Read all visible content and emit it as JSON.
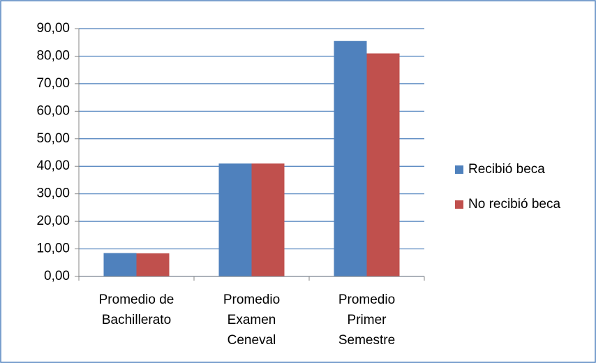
{
  "chart_data": {
    "type": "bar",
    "categories": [
      "Promedio de\nBachillerato",
      "Promedio\nExamen\nCeneval",
      "Promedio\nPrimer\nSemestre"
    ],
    "series": [
      {
        "name": "Recibió beca",
        "color": "#4f81bd",
        "values": [
          8.5,
          41,
          85.5
        ]
      },
      {
        "name": "No recibió beca",
        "color": "#c0504d",
        "values": [
          8.4,
          41,
          81
        ]
      }
    ],
    "ylim": [
      0,
      90
    ],
    "yticks": [
      {
        "value": 0,
        "label": "0,00"
      },
      {
        "value": 10,
        "label": "10,00"
      },
      {
        "value": 20,
        "label": "20,00"
      },
      {
        "value": 30,
        "label": "30,00"
      },
      {
        "value": 40,
        "label": "40,00"
      },
      {
        "value": 50,
        "label": "50,00"
      },
      {
        "value": 60,
        "label": "60,00"
      },
      {
        "value": 70,
        "label": "70,00"
      },
      {
        "value": 80,
        "label": "80,00"
      },
      {
        "value": 90,
        "label": "90,00"
      }
    ],
    "grid": true,
    "legend": "right"
  }
}
